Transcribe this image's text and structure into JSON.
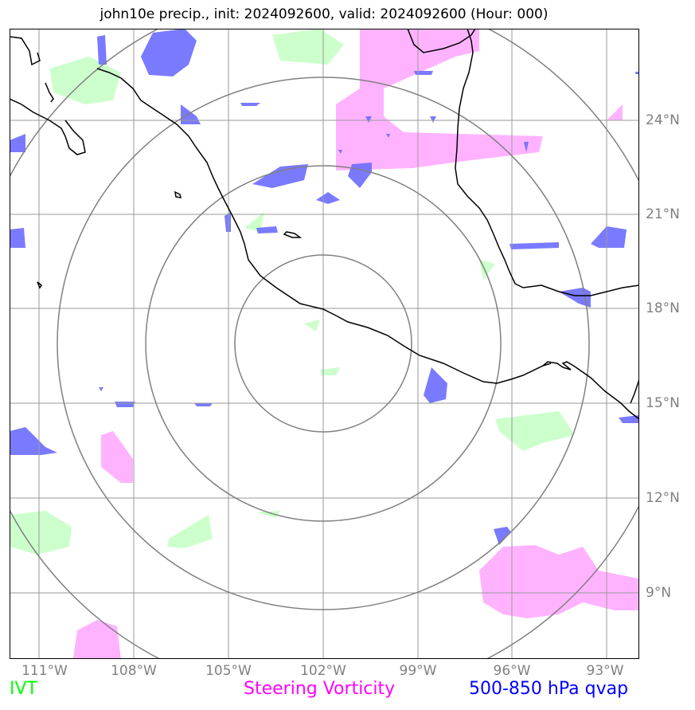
{
  "title": "john10e precip., init: 2024092600, valid: 2024092600 (Hour: 000)",
  "latitude_labels": [
    "24°N",
    "21°N",
    "18°N",
    "15°N",
    "12°N",
    "9°N"
  ],
  "longitude_labels": [
    "111°W",
    "108°W",
    "105°W",
    "102°W",
    "99°W",
    "96°W",
    "93°W"
  ],
  "legend": {
    "ivt": {
      "label": "IVT",
      "color": "#00ff00"
    },
    "steering_vorticity": {
      "label": "Steering Vorticity",
      "color": "#ff00ff"
    },
    "qvap": {
      "label": "500-850 hPa qvap",
      "color": "#0000ff"
    }
  },
  "colors": {
    "ivt_fill": "#ccffcc",
    "vorticity_fill": "#ffb3ff",
    "qvap_fill": "#6b6bff",
    "grid": "#999999",
    "range_rings": "#808080",
    "coastline": "#000000"
  }
}
